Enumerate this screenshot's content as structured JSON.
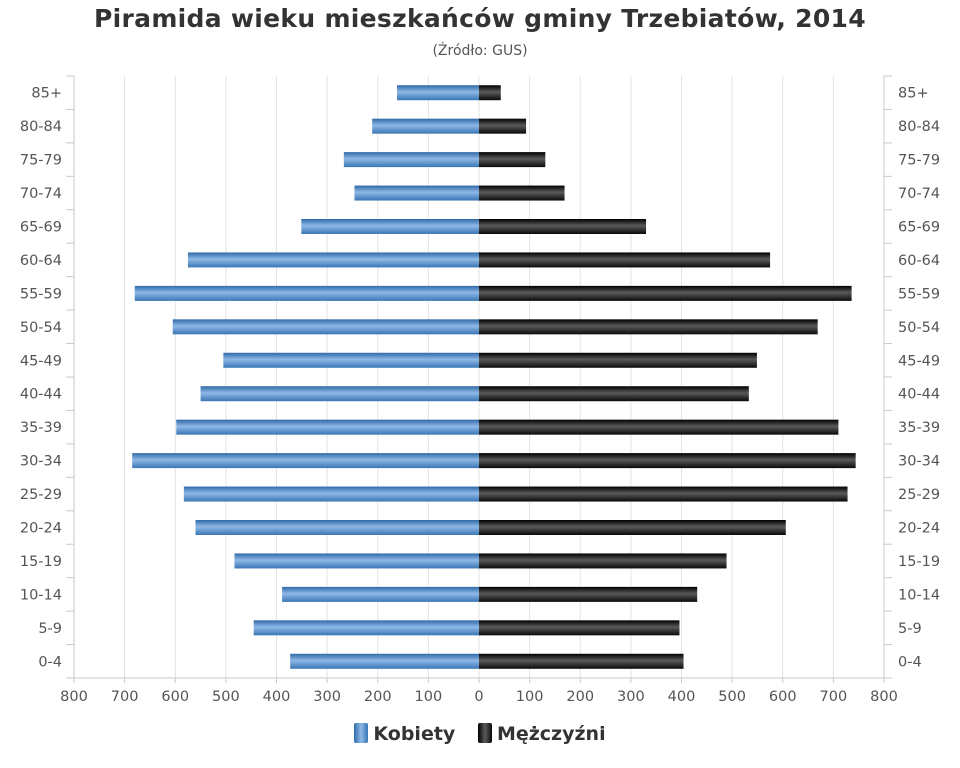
{
  "chart_data": {
    "type": "bar",
    "orientation": "horizontal",
    "title": "Piramida wieku mieszkańców gminy Trzebiatów, 2014",
    "subtitle": "(Źródło: GUS)",
    "categories": [
      "85+",
      "80-84",
      "75-79",
      "70-74",
      "65-69",
      "60-64",
      "55-59",
      "50-54",
      "45-49",
      "40-44",
      "35-39",
      "30-34",
      "25-29",
      "20-24",
      "15-19",
      "10-14",
      "5-9",
      "0-4"
    ],
    "series": [
      {
        "name": "Kobiety",
        "color": "#4a86c5",
        "values": [
          162,
          211,
          267,
          246,
          351,
          575,
          680,
          605,
          505,
          550,
          598,
          685,
          583,
          560,
          483,
          389,
          445,
          373
        ]
      },
      {
        "name": "Mężczyźni",
        "color": "#1a1a1a",
        "values": [
          43,
          93,
          131,
          169,
          330,
          575,
          736,
          669,
          549,
          533,
          710,
          744,
          728,
          606,
          489,
          431,
          396,
          404
        ]
      }
    ],
    "xlim": [
      -800,
      800
    ],
    "x_ticks": [
      "800",
      "700",
      "600",
      "500",
      "400",
      "300",
      "200",
      "100",
      "0",
      "100",
      "200",
      "300",
      "400",
      "500",
      "600",
      "700",
      "800"
    ],
    "grid": true,
    "legend_position": "bottom-center"
  }
}
